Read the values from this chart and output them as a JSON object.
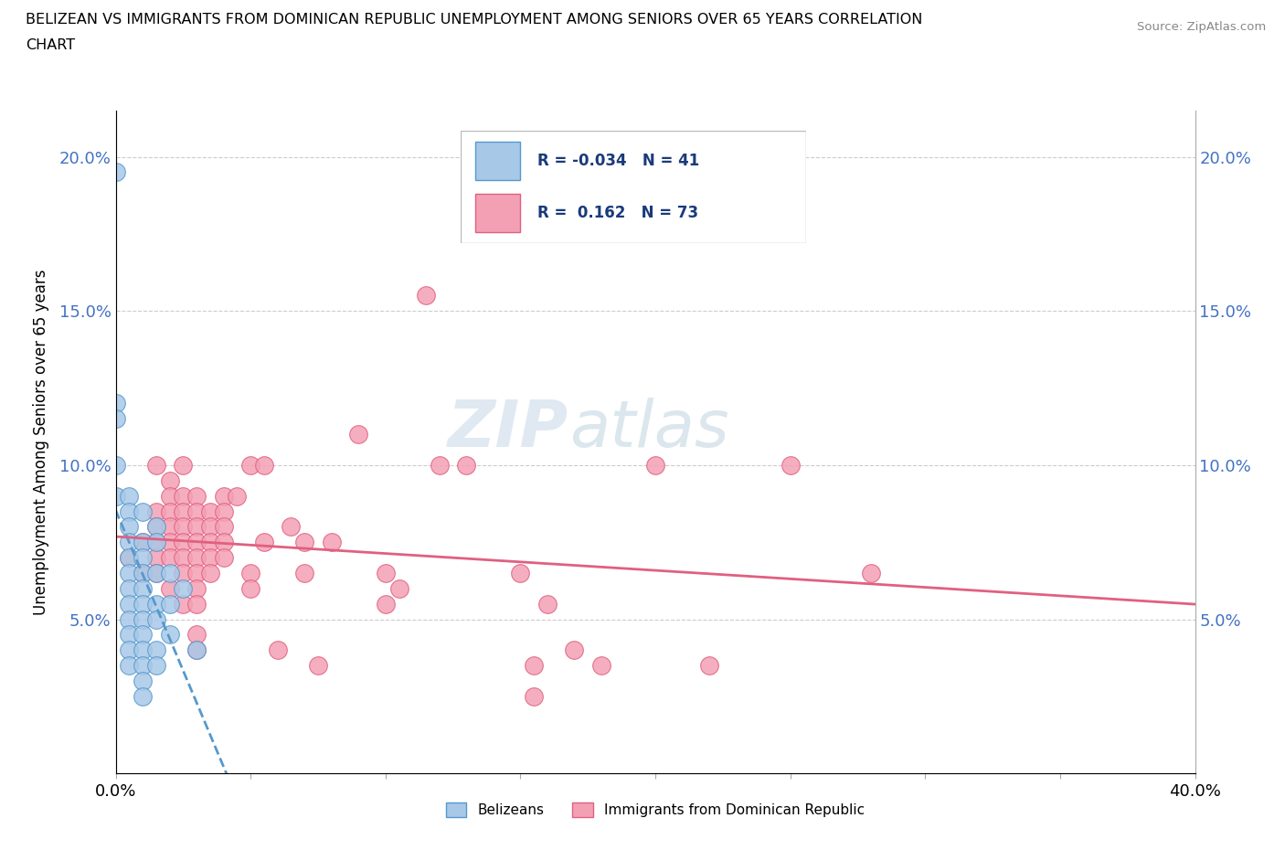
{
  "title_line1": "BELIZEAN VS IMMIGRANTS FROM DOMINICAN REPUBLIC UNEMPLOYMENT AMONG SENIORS OVER 65 YEARS CORRELATION",
  "title_line2": "CHART",
  "source_text": "Source: ZipAtlas.com",
  "ylabel": "Unemployment Among Seniors over 65 years",
  "xlim": [
    0.0,
    0.4
  ],
  "ylim": [
    0.0,
    0.215
  ],
  "x_ticks": [
    0.0,
    0.05,
    0.1,
    0.15,
    0.2,
    0.25,
    0.3,
    0.35,
    0.4
  ],
  "y_ticks": [
    0.0,
    0.05,
    0.1,
    0.15,
    0.2
  ],
  "watermark_zip": "ZIP",
  "watermark_atlas": "atlas",
  "belizean_color": "#a8c8e8",
  "belizean_edge": "#5599cc",
  "dominican_color": "#f4a0b4",
  "dominican_edge": "#e06080",
  "belizean_line_color": "#5599cc",
  "dominican_line_color": "#e06080",
  "grid_color": "#cccccc",
  "background_color": "#ffffff",
  "tick_color": "#4472c4",
  "belizean_R": -0.034,
  "belizean_N": 41,
  "dominican_R": 0.162,
  "dominican_N": 73,
  "belizean_scatter": [
    [
      0.0,
      0.195
    ],
    [
      0.0,
      0.12
    ],
    [
      0.0,
      0.115
    ],
    [
      0.0,
      0.1
    ],
    [
      0.0,
      0.09
    ],
    [
      0.005,
      0.09
    ],
    [
      0.005,
      0.085
    ],
    [
      0.005,
      0.08
    ],
    [
      0.005,
      0.075
    ],
    [
      0.005,
      0.07
    ],
    [
      0.005,
      0.065
    ],
    [
      0.005,
      0.06
    ],
    [
      0.005,
      0.055
    ],
    [
      0.005,
      0.05
    ],
    [
      0.005,
      0.045
    ],
    [
      0.005,
      0.04
    ],
    [
      0.005,
      0.035
    ],
    [
      0.01,
      0.085
    ],
    [
      0.01,
      0.075
    ],
    [
      0.01,
      0.07
    ],
    [
      0.01,
      0.065
    ],
    [
      0.01,
      0.06
    ],
    [
      0.01,
      0.055
    ],
    [
      0.01,
      0.05
    ],
    [
      0.01,
      0.045
    ],
    [
      0.01,
      0.04
    ],
    [
      0.01,
      0.035
    ],
    [
      0.01,
      0.03
    ],
    [
      0.01,
      0.025
    ],
    [
      0.015,
      0.08
    ],
    [
      0.015,
      0.075
    ],
    [
      0.015,
      0.065
    ],
    [
      0.015,
      0.055
    ],
    [
      0.015,
      0.05
    ],
    [
      0.015,
      0.04
    ],
    [
      0.015,
      0.035
    ],
    [
      0.02,
      0.065
    ],
    [
      0.02,
      0.055
    ],
    [
      0.02,
      0.045
    ],
    [
      0.025,
      0.06
    ],
    [
      0.03,
      0.04
    ]
  ],
  "dominican_scatter": [
    [
      0.005,
      0.07
    ],
    [
      0.01,
      0.075
    ],
    [
      0.01,
      0.065
    ],
    [
      0.015,
      0.1
    ],
    [
      0.015,
      0.085
    ],
    [
      0.015,
      0.08
    ],
    [
      0.015,
      0.075
    ],
    [
      0.015,
      0.07
    ],
    [
      0.015,
      0.065
    ],
    [
      0.02,
      0.095
    ],
    [
      0.02,
      0.09
    ],
    [
      0.02,
      0.085
    ],
    [
      0.02,
      0.08
    ],
    [
      0.02,
      0.075
    ],
    [
      0.02,
      0.07
    ],
    [
      0.02,
      0.06
    ],
    [
      0.025,
      0.1
    ],
    [
      0.025,
      0.09
    ],
    [
      0.025,
      0.085
    ],
    [
      0.025,
      0.08
    ],
    [
      0.025,
      0.075
    ],
    [
      0.025,
      0.07
    ],
    [
      0.025,
      0.065
    ],
    [
      0.025,
      0.055
    ],
    [
      0.03,
      0.09
    ],
    [
      0.03,
      0.085
    ],
    [
      0.03,
      0.08
    ],
    [
      0.03,
      0.075
    ],
    [
      0.03,
      0.07
    ],
    [
      0.03,
      0.065
    ],
    [
      0.03,
      0.06
    ],
    [
      0.03,
      0.055
    ],
    [
      0.03,
      0.045
    ],
    [
      0.03,
      0.04
    ],
    [
      0.035,
      0.085
    ],
    [
      0.035,
      0.08
    ],
    [
      0.035,
      0.075
    ],
    [
      0.035,
      0.07
    ],
    [
      0.035,
      0.065
    ],
    [
      0.04,
      0.09
    ],
    [
      0.04,
      0.085
    ],
    [
      0.04,
      0.08
    ],
    [
      0.04,
      0.075
    ],
    [
      0.04,
      0.07
    ],
    [
      0.045,
      0.09
    ],
    [
      0.05,
      0.1
    ],
    [
      0.05,
      0.065
    ],
    [
      0.05,
      0.06
    ],
    [
      0.055,
      0.1
    ],
    [
      0.055,
      0.075
    ],
    [
      0.06,
      0.04
    ],
    [
      0.065,
      0.08
    ],
    [
      0.07,
      0.075
    ],
    [
      0.07,
      0.065
    ],
    [
      0.075,
      0.035
    ],
    [
      0.08,
      0.075
    ],
    [
      0.09,
      0.11
    ],
    [
      0.1,
      0.065
    ],
    [
      0.1,
      0.055
    ],
    [
      0.105,
      0.06
    ],
    [
      0.115,
      0.155
    ],
    [
      0.12,
      0.1
    ],
    [
      0.13,
      0.1
    ],
    [
      0.15,
      0.065
    ],
    [
      0.155,
      0.035
    ],
    [
      0.155,
      0.025
    ],
    [
      0.16,
      0.055
    ],
    [
      0.17,
      0.04
    ],
    [
      0.18,
      0.035
    ],
    [
      0.2,
      0.1
    ],
    [
      0.22,
      0.035
    ],
    [
      0.25,
      0.1
    ],
    [
      0.28,
      0.065
    ]
  ]
}
